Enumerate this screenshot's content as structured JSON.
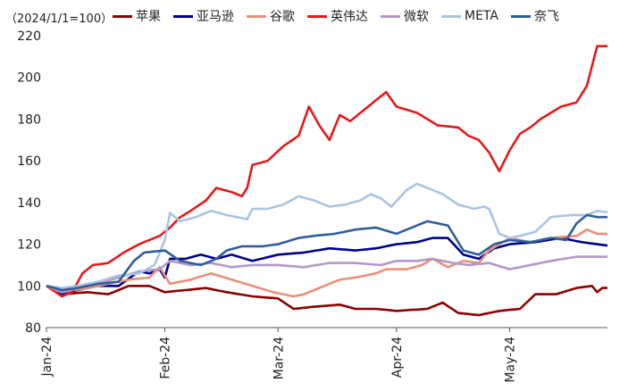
{
  "chart_data": {
    "type": "line",
    "unit_note": "（2024/1/1=100）",
    "x_ticks": [
      "Jan-24",
      "Feb-24",
      "Mar-24",
      "Apr-24",
      "May-24"
    ],
    "x_tick_index": [
      0,
      23,
      45,
      68,
      90
    ],
    "n_points": 110,
    "ylim": [
      80,
      220
    ],
    "y_ticks": [
      80,
      100,
      120,
      140,
      160,
      180,
      200,
      220
    ],
    "series": [
      {
        "name": "苹果",
        "color": "#8b0000",
        "knots": [
          [
            0,
            100
          ],
          [
            3,
            96
          ],
          [
            8,
            97
          ],
          [
            12,
            96
          ],
          [
            16,
            100
          ],
          [
            20,
            100
          ],
          [
            23,
            97
          ],
          [
            27,
            98
          ],
          [
            31,
            99
          ],
          [
            35,
            97
          ],
          [
            40,
            95
          ],
          [
            45,
            94
          ],
          [
            48,
            89
          ],
          [
            52,
            90
          ],
          [
            57,
            91
          ],
          [
            60,
            89
          ],
          [
            64,
            89
          ],
          [
            68,
            88
          ],
          [
            74,
            89
          ],
          [
            77,
            92
          ],
          [
            80,
            87
          ],
          [
            84,
            86
          ],
          [
            88,
            88
          ],
          [
            92,
            89
          ],
          [
            95,
            96
          ],
          [
            99,
            96
          ],
          [
            103,
            99
          ],
          [
            106,
            100
          ],
          [
            107,
            97
          ],
          [
            108,
            99
          ],
          [
            110,
            99
          ]
        ]
      },
      {
        "name": "亚马逊",
        "color": "#00008b",
        "knots": [
          [
            0,
            100
          ],
          [
            3,
            96
          ],
          [
            6,
            98
          ],
          [
            10,
            100
          ],
          [
            14,
            100
          ],
          [
            18,
            107
          ],
          [
            20,
            106
          ],
          [
            22,
            108
          ],
          [
            23,
            104
          ],
          [
            24,
            113
          ],
          [
            27,
            113
          ],
          [
            30,
            115
          ],
          [
            33,
            113
          ],
          [
            36,
            115
          ],
          [
            40,
            112
          ],
          [
            45,
            115
          ],
          [
            50,
            116
          ],
          [
            55,
            118
          ],
          [
            60,
            117
          ],
          [
            64,
            118
          ],
          [
            68,
            120
          ],
          [
            72,
            121
          ],
          [
            75,
            123
          ],
          [
            78,
            123
          ],
          [
            81,
            115
          ],
          [
            84,
            113
          ],
          [
            87,
            118
          ],
          [
            90,
            120
          ],
          [
            95,
            121
          ],
          [
            100,
            123
          ],
          [
            104,
            121
          ],
          [
            107,
            120
          ],
          [
            110,
            119
          ]
        ]
      },
      {
        "name": "谷歌",
        "color": "#e8907a",
        "knots": [
          [
            0,
            100
          ],
          [
            3,
            97
          ],
          [
            8,
            99
          ],
          [
            12,
            101
          ],
          [
            16,
            103
          ],
          [
            20,
            104
          ],
          [
            22,
            109
          ],
          [
            24,
            101
          ],
          [
            28,
            103
          ],
          [
            32,
            106
          ],
          [
            36,
            103
          ],
          [
            40,
            100
          ],
          [
            44,
            97
          ],
          [
            48,
            95
          ],
          [
            50,
            96
          ],
          [
            53,
            99
          ],
          [
            57,
            103
          ],
          [
            60,
            104
          ],
          [
            64,
            106
          ],
          [
            66,
            108
          ],
          [
            70,
            108
          ],
          [
            73,
            110
          ],
          [
            75,
            113
          ],
          [
            78,
            109
          ],
          [
            81,
            112
          ],
          [
            84,
            111
          ],
          [
            86,
            117
          ],
          [
            90,
            123
          ],
          [
            94,
            121
          ],
          [
            98,
            123
          ],
          [
            103,
            124
          ],
          [
            105,
            127
          ],
          [
            107,
            125
          ],
          [
            110,
            125
          ]
        ]
      },
      {
        "name": "英伟达",
        "color": "#e31a1c",
        "knots": [
          [
            0,
            100
          ],
          [
            3,
            95
          ],
          [
            5,
            97
          ],
          [
            7,
            106
          ],
          [
            9,
            110
          ],
          [
            12,
            111
          ],
          [
            15,
            116
          ],
          [
            18,
            120
          ],
          [
            22,
            124
          ],
          [
            24,
            128
          ],
          [
            26,
            133
          ],
          [
            28,
            136
          ],
          [
            31,
            141
          ],
          [
            33,
            147
          ],
          [
            36,
            145
          ],
          [
            38,
            143
          ],
          [
            39,
            147
          ],
          [
            40,
            158
          ],
          [
            43,
            160
          ],
          [
            46,
            167
          ],
          [
            49,
            172
          ],
          [
            51,
            186
          ],
          [
            53,
            177
          ],
          [
            55,
            170
          ],
          [
            57,
            182
          ],
          [
            59,
            179
          ],
          [
            62,
            185
          ],
          [
            64,
            189
          ],
          [
            66,
            193
          ],
          [
            68,
            186
          ],
          [
            72,
            183
          ],
          [
            76,
            177
          ],
          [
            80,
            176
          ],
          [
            82,
            172
          ],
          [
            84,
            170
          ],
          [
            86,
            164
          ],
          [
            88,
            155
          ],
          [
            90,
            165
          ],
          [
            92,
            173
          ],
          [
            94,
            176
          ],
          [
            96,
            180
          ],
          [
            98,
            183
          ],
          [
            100,
            186
          ],
          [
            103,
            188
          ],
          [
            104,
            192
          ],
          [
            105,
            196
          ],
          [
            107,
            215
          ],
          [
            110,
            215
          ]
        ]
      },
      {
        "name": "微软",
        "color": "#b397c9",
        "knots": [
          [
            0,
            100
          ],
          [
            3,
            97
          ],
          [
            6,
            99
          ],
          [
            10,
            101
          ],
          [
            14,
            104
          ],
          [
            18,
            107
          ],
          [
            22,
            108
          ],
          [
            24,
            112
          ],
          [
            28,
            110
          ],
          [
            32,
            111
          ],
          [
            36,
            109
          ],
          [
            40,
            110
          ],
          [
            45,
            110
          ],
          [
            50,
            109
          ],
          [
            55,
            111
          ],
          [
            60,
            111
          ],
          [
            65,
            110
          ],
          [
            68,
            112
          ],
          [
            72,
            112
          ],
          [
            75,
            113
          ],
          [
            79,
            111
          ],
          [
            82,
            110
          ],
          [
            86,
            111
          ],
          [
            90,
            108
          ],
          [
            94,
            110
          ],
          [
            98,
            112
          ],
          [
            103,
            114
          ],
          [
            107,
            114
          ],
          [
            110,
            114
          ]
        ]
      },
      {
        "name": "META",
        "color": "#a9c4e4",
        "knots": [
          [
            0,
            100
          ],
          [
            3,
            99
          ],
          [
            6,
            100
          ],
          [
            10,
            102
          ],
          [
            14,
            105
          ],
          [
            18,
            106
          ],
          [
            21,
            110
          ],
          [
            23,
            122
          ],
          [
            24,
            135
          ],
          [
            26,
            131
          ],
          [
            29,
            133
          ],
          [
            32,
            136
          ],
          [
            35,
            134
          ],
          [
            37,
            133
          ],
          [
            39,
            132
          ],
          [
            40,
            137
          ],
          [
            43,
            137
          ],
          [
            46,
            139
          ],
          [
            49,
            143
          ],
          [
            52,
            141
          ],
          [
            55,
            138
          ],
          [
            58,
            139
          ],
          [
            61,
            141
          ],
          [
            63,
            144
          ],
          [
            65,
            142
          ],
          [
            67,
            138
          ],
          [
            70,
            146
          ],
          [
            72,
            149
          ],
          [
            74,
            147
          ],
          [
            77,
            144
          ],
          [
            80,
            139
          ],
          [
            83,
            137
          ],
          [
            85,
            138
          ],
          [
            86,
            137
          ],
          [
            88,
            125
          ],
          [
            90,
            123
          ],
          [
            92,
            124
          ],
          [
            95,
            126
          ],
          [
            98,
            133
          ],
          [
            102,
            134
          ],
          [
            105,
            134
          ],
          [
            107,
            136
          ],
          [
            110,
            135
          ]
        ]
      },
      {
        "name": "奈飞",
        "color": "#2e5e9a",
        "knots": [
          [
            0,
            100
          ],
          [
            3,
            98
          ],
          [
            6,
            99
          ],
          [
            10,
            101
          ],
          [
            14,
            102
          ],
          [
            17,
            112
          ],
          [
            19,
            116
          ],
          [
            23,
            117
          ],
          [
            26,
            112
          ],
          [
            30,
            110
          ],
          [
            33,
            113
          ],
          [
            35,
            117
          ],
          [
            38,
            119
          ],
          [
            42,
            119
          ],
          [
            45,
            120
          ],
          [
            49,
            123
          ],
          [
            52,
            124
          ],
          [
            56,
            125
          ],
          [
            60,
            127
          ],
          [
            64,
            128
          ],
          [
            68,
            125
          ],
          [
            71,
            128
          ],
          [
            74,
            131
          ],
          [
            78,
            129
          ],
          [
            81,
            117
          ],
          [
            84,
            115
          ],
          [
            87,
            120
          ],
          [
            90,
            122
          ],
          [
            94,
            121
          ],
          [
            98,
            123
          ],
          [
            101,
            122
          ],
          [
            103,
            130
          ],
          [
            105,
            134
          ],
          [
            107,
            133
          ],
          [
            110,
            133
          ]
        ]
      }
    ]
  }
}
